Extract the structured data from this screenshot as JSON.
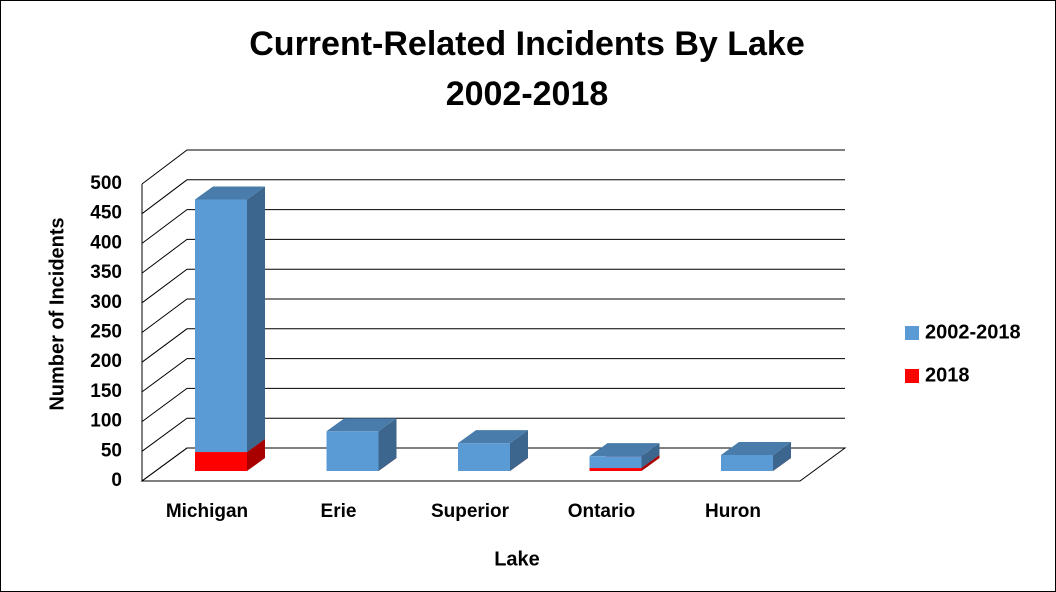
{
  "chart_data": {
    "type": "bar3d-stacked",
    "title": [
      "Current-Related Incidents By Lake",
      "2002-2018"
    ],
    "x_label": "Lake",
    "y_label": "Number of Incidents",
    "categories": [
      "Michigan",
      "Erie",
      "Superior",
      "Ontario",
      "Huron"
    ],
    "series": [
      {
        "name": "2002-2018",
        "color": "#5b9bd5",
        "values": [
          426,
          67,
          47,
          20,
          27
        ]
      },
      {
        "name": "2018",
        "color": "#ff0000",
        "values": [
          32,
          0,
          0,
          5,
          0
        ]
      }
    ],
    "ylim": [
      0,
      500
    ],
    "yticks": [
      0,
      50,
      100,
      150,
      200,
      250,
      300,
      350,
      400,
      450,
      500
    ],
    "grid": true,
    "legend": "right"
  }
}
